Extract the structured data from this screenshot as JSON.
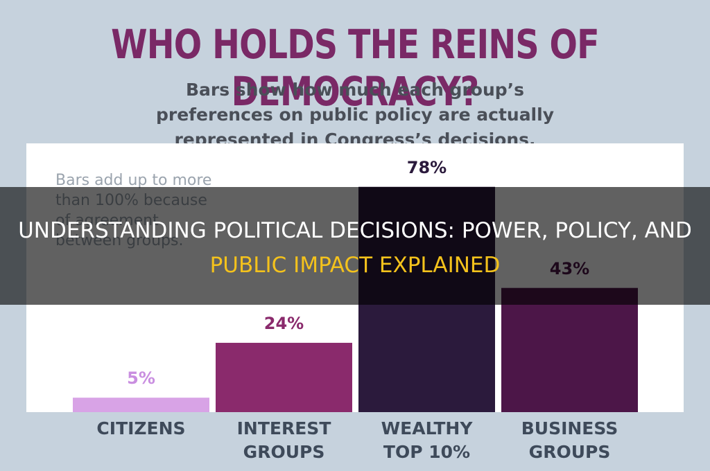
{
  "chart_data": {
    "type": "bar",
    "title": "WHO HOLDS THE REINS OF DEMOCRACY?",
    "subtitle": "Bars show how much each group’s preferences on public policy are actually represented in Congress’s decisions.",
    "note": "Bars add up to more than 100% because of agreement between groups.",
    "categories": [
      "CITIZENS",
      "INTEREST GROUPS",
      "WEALTHY TOP 10%",
      "BUSINESS GROUPS"
    ],
    "values": [
      5,
      24,
      78,
      43
    ],
    "value_labels": [
      "5%",
      "24%",
      "78%",
      "43%"
    ],
    "colors": [
      "#d8a3e6",
      "#8a2a6c",
      "#2b1a3c",
      "#4c1648"
    ]
  },
  "overlay": {
    "line1": "UNDERSTANDING POLITICAL DECISIONS: POWER, POLICY, AND",
    "line2": "PUBLIC IMPACT EXPLAINED"
  }
}
